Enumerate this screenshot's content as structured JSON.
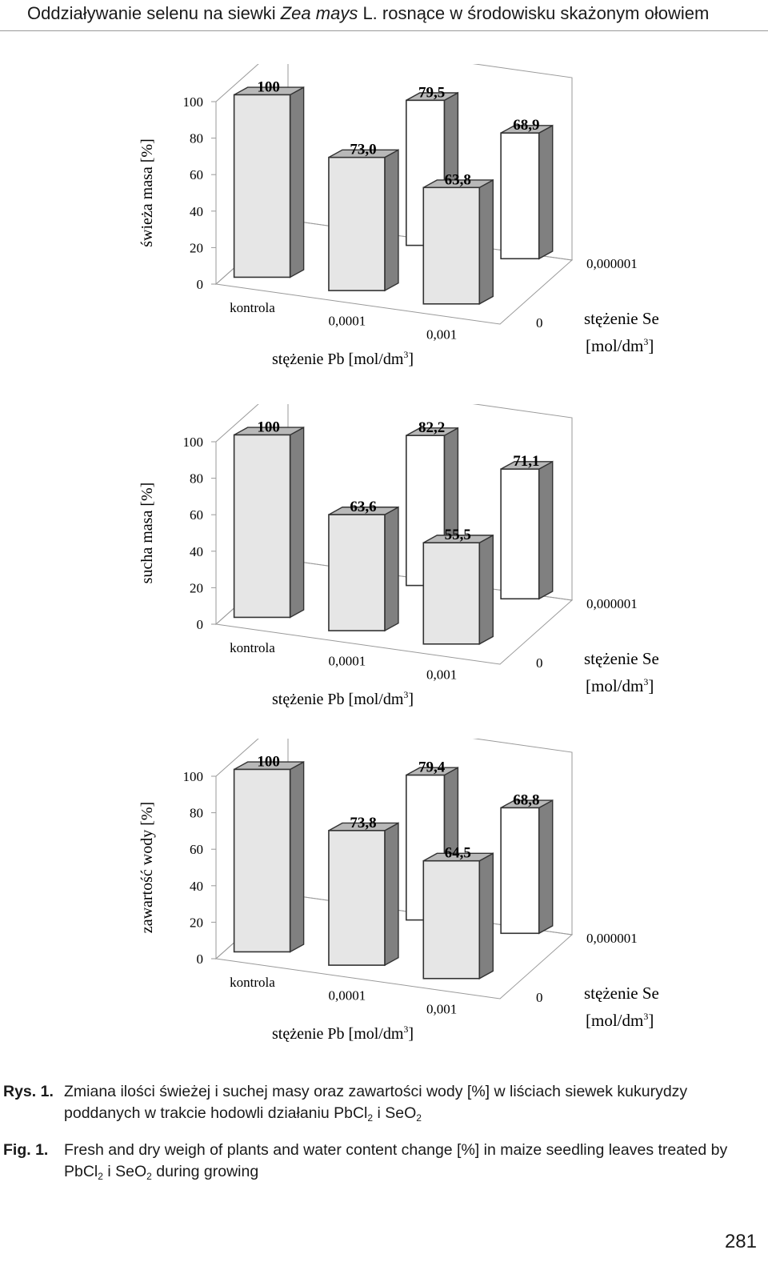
{
  "header": {
    "before": "Oddziaływanie selenu na siewki ",
    "species": "Zea mays",
    "after": " L. rosnące w środowisku skażonym ołowiem"
  },
  "chart_data": [
    {
      "type": "bar",
      "ylabel": "świeża masa [%]",
      "ylim": [
        0,
        100
      ],
      "yticks": [
        "0",
        "20",
        "40",
        "60",
        "80",
        "100"
      ],
      "x_axis_label": "stężenie Pb [mol/dm³]",
      "x_categories": [
        "kontrola",
        "0,0001",
        "0,001"
      ],
      "depth_axis_label": "stężenie Se [mol/dm³]",
      "depth_categories": [
        "0",
        "0,000001"
      ],
      "series": [
        {
          "name": "0",
          "values": [
            100,
            73.0,
            63.8
          ],
          "labels": [
            "100",
            "73,0",
            "63,8"
          ]
        },
        {
          "name": "0,000001",
          "values": [
            null,
            79.5,
            68.9
          ],
          "labels": [
            "",
            "79,5",
            "68,9"
          ]
        }
      ]
    },
    {
      "type": "bar",
      "ylabel": "sucha masa [%]",
      "ylim": [
        0,
        100
      ],
      "yticks": [
        "0",
        "20",
        "40",
        "60",
        "80",
        "100"
      ],
      "x_axis_label": "stężenie Pb [mol/dm³]",
      "x_categories": [
        "kontrola",
        "0,0001",
        "0,001"
      ],
      "depth_axis_label": "stężenie Se [mol/dm³]",
      "depth_categories": [
        "0",
        "0,000001"
      ],
      "series": [
        {
          "name": "0",
          "values": [
            100,
            63.6,
            55.5
          ],
          "labels": [
            "100",
            "63,6",
            "55,5"
          ]
        },
        {
          "name": "0,000001",
          "values": [
            null,
            82.2,
            71.1
          ],
          "labels": [
            "",
            "82,2",
            "71,1"
          ]
        }
      ]
    },
    {
      "type": "bar",
      "ylabel": "zawartość wody [%]",
      "ylim": [
        0,
        100
      ],
      "yticks": [
        "0",
        "20",
        "40",
        "60",
        "80",
        "100"
      ],
      "x_axis_label": "stężenie Pb [mol/dm³]",
      "x_categories": [
        "kontrola",
        "0,0001",
        "0,001"
      ],
      "depth_axis_label": "stężenie Se [mol/dm³]",
      "depth_categories": [
        "0",
        "0,000001"
      ],
      "series": [
        {
          "name": "0",
          "values": [
            100,
            73.8,
            64.5
          ],
          "labels": [
            "100",
            "73,8",
            "64,5"
          ]
        },
        {
          "name": "0,000001",
          "values": [
            null,
            79.4,
            68.8
          ],
          "labels": [
            "",
            "79,4",
            "68,8"
          ]
        }
      ]
    }
  ],
  "axis_text": {
    "pb_prefix": "stężenie Pb [mol/dm",
    "se_line1": "stężenie Se",
    "se_line2_prefix": "[mol/dm",
    "exp": "3",
    "close": "]"
  },
  "caption": {
    "rys_label": "Rys. 1.",
    "rys_text_1": "Zmiana ilości świeżej i suchej masy oraz zawartości wody [%] w liściach siewek kukurydzy poddanych w trakcie hodowli działaniu PbCl",
    "rys_sub_1": "2",
    "rys_text_2": " i SeO",
    "rys_sub_2": "2",
    "fig_label": "Fig. 1.",
    "fig_text_1": "Fresh and dry weigh of plants and water content change [%] in maize seedling leaves treated by PbCl",
    "fig_sub_1": "2",
    "fig_text_2": " i SeO",
    "fig_sub_2": "2",
    "fig_text_3": " during growing"
  },
  "page_number": "281",
  "colors": {
    "front_bar": "#e6e6e6",
    "back_bar": "#ffffff",
    "bar_side": "#808080",
    "bar_top": "#b8b8b8",
    "frame": "#9a9a9a"
  }
}
